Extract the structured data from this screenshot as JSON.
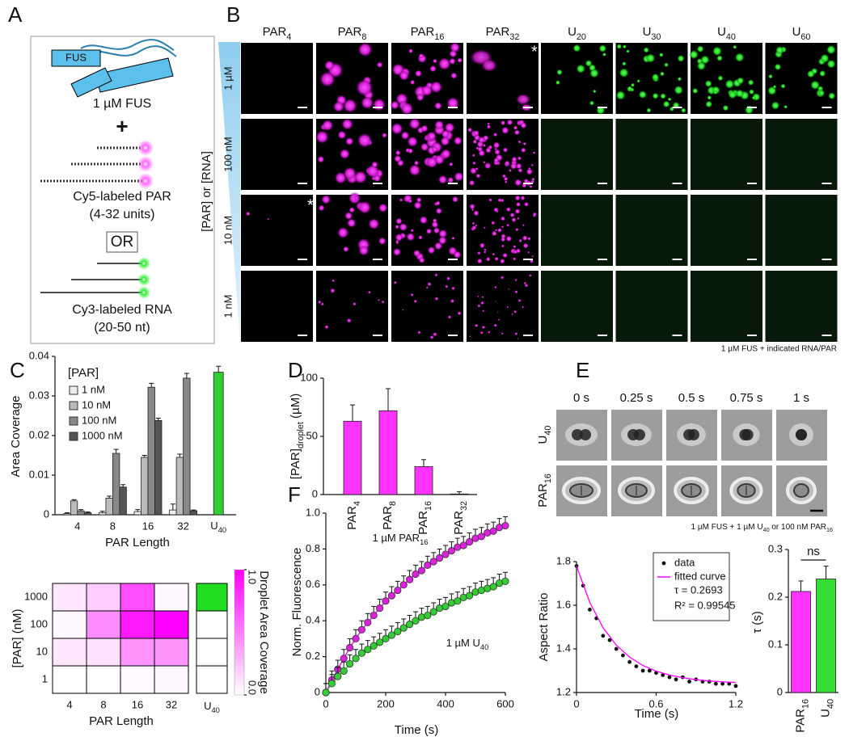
{
  "panel_labels": [
    "A",
    "B",
    "C",
    "D",
    "E",
    "F"
  ],
  "schematic": {
    "protein": "FUS",
    "protein_label": "1 µM FUS",
    "plus": "+",
    "par_label": "Cy5-labeled PAR",
    "par_range": "(4-32 units)",
    "or": "OR",
    "rna_label": "Cy3-labeled RNA",
    "rna_range": "(20-50 nt)"
  },
  "micrographs": {
    "columns": [
      [
        "PAR",
        {
          "sub": "4"
        }
      ],
      [
        "PAR",
        {
          "sub": "8"
        }
      ],
      [
        "PAR",
        {
          "sub": "16"
        }
      ],
      [
        "PAR",
        {
          "sub": "32"
        }
      ],
      [
        "U",
        {
          "sub": "20"
        }
      ],
      [
        "U",
        {
          "sub": "30"
        }
      ],
      [
        "U",
        {
          "sub": "40"
        }
      ],
      [
        "U",
        {
          "sub": "60"
        }
      ]
    ],
    "rows": [
      "1 µM",
      "100 nM",
      "10 nM",
      "1 nM"
    ],
    "axis_label": "[PAR] or [RNA]",
    "asterisk": "*",
    "caption": "1 µM FUS + indicated RNA/PAR"
  },
  "timelapse": {
    "time_labels": [
      "0 s",
      "0.25 s",
      "0.5 s",
      "0.75 s",
      "1 s"
    ],
    "row_labels": [
      [
        "U",
        {
          "sub": "40"
        }
      ],
      [
        "PAR",
        {
          "sub": "16"
        }
      ]
    ],
    "caption": [
      "1 µM FUS + 1 µM U",
      {
        "sub": "40"
      },
      " or 100 nM PAR",
      {
        "sub": "16"
      }
    ]
  },
  "chart_data": [
    {
      "type": "bar",
      "y_label": "Area Coverage",
      "x_label": "PAR Length",
      "legend_title": "[PAR]",
      "categories": [
        "4",
        "8",
        "16",
        "32",
        [
          "U",
          {
            "sub": "40"
          }
        ]
      ],
      "series": [
        {
          "name": "1 nM",
          "color": "#eeeeee",
          "values": [
            0.0003,
            0.0005,
            0.0008,
            0.0012,
            null
          ],
          "errors": [
            0.0002,
            0.0004,
            0.0005,
            0.0015,
            null
          ]
        },
        {
          "name": "10 nM",
          "color": "#bbbbbb",
          "values": [
            0.0035,
            0.0042,
            0.0145,
            0.0145,
            null
          ],
          "errors": [
            0.0003,
            0.0005,
            0.0005,
            0.0008,
            null
          ]
        },
        {
          "name": "100 nM",
          "color": "#888888",
          "values": [
            0.001,
            0.0155,
            0.0322,
            0.0345,
            null
          ],
          "errors": [
            0.0003,
            0.001,
            0.001,
            0.0012,
            null
          ]
        },
        {
          "name": "1000 nM",
          "color": "#555555",
          "values": [
            0.0005,
            0.007,
            0.0238,
            0.001,
            null
          ],
          "errors": [
            0.0002,
            0.0006,
            0.0006,
            0.0002,
            null
          ]
        },
        {
          "color": "#33cc33",
          "values": [
            null,
            null,
            null,
            null,
            0.036
          ],
          "errors": [
            null,
            null,
            null,
            null,
            0.0015
          ]
        }
      ],
      "ylim": [
        0,
        0.04
      ],
      "yticks": [
        0,
        0.01,
        0.02,
        0.03,
        0.04
      ]
    },
    {
      "type": "heatmap",
      "y_label": "[PAR] (nM)",
      "x_label": "PAR Length",
      "x_categories": [
        "4",
        "8",
        "16",
        "32"
      ],
      "y_categories": [
        "1000",
        "100",
        "10",
        "1"
      ],
      "values": [
        [
          0.1,
          0.2,
          0.7,
          0.03
        ],
        [
          0.03,
          0.45,
          0.9,
          1
        ],
        [
          0.1,
          0.12,
          0.42,
          0.42
        ],
        [
          0.01,
          0.01,
          0.02,
          0.03
        ]
      ],
      "colors": [
        "#ffffff",
        "#ff00ff"
      ],
      "extra_column": {
        "label": [
          "U",
          {
            "sub": "40"
          }
        ],
        "values": [
          1,
          0,
          0,
          0
        ],
        "color": "#22dd22"
      },
      "zlim": [
        0,
        1
      ],
      "zticks": [
        {
          "value": 0,
          "label": "0.0"
        },
        {
          "value": 1,
          "label": "1.0"
        }
      ],
      "colorbar_label": "Droplet Area Coverage"
    },
    {
      "type": "bar",
      "y_label": [
        "[PAR]",
        {
          "sub": "droplet"
        },
        " (µM)"
      ],
      "categories": [
        [
          "PAR",
          {
            "sub": "4"
          }
        ],
        [
          "PAR",
          {
            "sub": "8"
          }
        ],
        [
          "PAR",
          {
            "sub": "16"
          }
        ],
        [
          "PAR",
          {
            "sub": "32"
          }
        ]
      ],
      "values": [
        63,
        72,
        24,
        0.5
      ],
      "errors": [
        14,
        19,
        6,
        2
      ],
      "color": "#ff33ff",
      "ylim": [
        0,
        100
      ],
      "yticks": [
        0,
        50,
        100
      ]
    },
    {
      "type": "line",
      "y_label": "Norm. Fluorescence",
      "x_label": "Time (s)",
      "x": [
        0,
        20,
        40,
        60,
        80,
        100,
        120,
        140,
        160,
        180,
        200,
        220,
        240,
        260,
        280,
        300,
        320,
        340,
        360,
        380,
        400,
        420,
        440,
        460,
        480,
        500,
        520,
        540,
        560,
        580,
        600
      ],
      "series": [
        {
          "name": [
            "1 µM PAR",
            {
              "sub": "16"
            }
          ],
          "color": "#dd22dd",
          "error": 0.05,
          "values": [
            0,
            0.07,
            0.13,
            0.19,
            0.25,
            0.3,
            0.35,
            0.39,
            0.43,
            0.47,
            0.51,
            0.54,
            0.57,
            0.6,
            0.63,
            0.66,
            0.68,
            0.71,
            0.73,
            0.75,
            0.77,
            0.79,
            0.81,
            0.82,
            0.84,
            0.86,
            0.87,
            0.89,
            0.9,
            0.92,
            0.93
          ]
        },
        {
          "name": [
            "1 µM U",
            {
              "sub": "40"
            }
          ],
          "color": "#33cc33",
          "error": 0.05,
          "values": [
            0,
            0.05,
            0.09,
            0.12,
            0.16,
            0.19,
            0.22,
            0.24,
            0.26,
            0.28,
            0.3,
            0.32,
            0.34,
            0.36,
            0.38,
            0.4,
            0.42,
            0.43,
            0.45,
            0.47,
            0.48,
            0.5,
            0.51,
            0.53,
            0.54,
            0.56,
            0.57,
            0.58,
            0.59,
            0.61,
            0.62
          ]
        }
      ],
      "xlim": [
        0,
        600
      ],
      "xticks": [
        0,
        200,
        400,
        600
      ],
      "ylim": [
        0,
        1
      ],
      "yticks": [
        0,
        0.2,
        0.4,
        0.6,
        0.8,
        {
          "value": 1,
          "label": "1.0"
        }
      ]
    },
    {
      "type": "scatter",
      "y_label": "Aspect Ratio",
      "x_label": "Time (s)",
      "series": [
        {
          "name": "data",
          "color": "#111111",
          "x": [
            0,
            0.05,
            0.1,
            0.15,
            0.2,
            0.25,
            0.3,
            0.35,
            0.4,
            0.45,
            0.5,
            0.55,
            0.6,
            0.65,
            0.7,
            0.75,
            0.8,
            0.85,
            0.9,
            0.95,
            1,
            1.05,
            1.1,
            1.15,
            1.2
          ],
          "values": [
            1.78,
            1.69,
            1.58,
            1.54,
            1.46,
            1.44,
            1.4,
            1.37,
            1.34,
            1.32,
            1.3,
            1.3,
            1.29,
            1.28,
            1.27,
            1.26,
            1.27,
            1.25,
            1.26,
            1.25,
            1.25,
            1.24,
            1.24,
            1.24,
            1.23
          ]
        },
        {
          "name": "fitted curve",
          "color": "#ff00ff",
          "style": "line",
          "x": [
            0,
            0.1,
            0.2,
            0.3,
            0.4,
            0.5,
            0.6,
            0.7,
            0.8,
            0.9,
            1,
            1.1,
            1.2
          ],
          "values": [
            1.78,
            1.613,
            1.497,
            1.417,
            1.362,
            1.324,
            1.298,
            1.28,
            1.268,
            1.259,
            1.253,
            1.249,
            1.246
          ]
        }
      ],
      "annotations": [
        "τ = 0.2693",
        "R² = 0.99545"
      ],
      "xlim": [
        0,
        1.2
      ],
      "xticks": [
        0,
        0.6,
        1.2
      ],
      "ylim": [
        1.2,
        1.8
      ],
      "yticks": [
        1.2,
        1.4,
        1.6,
        1.8
      ]
    },
    {
      "type": "bar",
      "y_label": "τ (s)",
      "categories": [
        [
          "PAR",
          {
            "sub": "16"
          }
        ],
        [
          "U",
          {
            "sub": "40"
          }
        ]
      ],
      "values": [
        0.212,
        0.238
      ],
      "errors": [
        0.022,
        0.027
      ],
      "colors": [
        "#ff33ff",
        "#33dd33"
      ],
      "annotation": "ns",
      "ylim": [
        0,
        0.3
      ],
      "yticks": [
        0,
        0.1,
        0.2,
        0.3
      ]
    }
  ]
}
